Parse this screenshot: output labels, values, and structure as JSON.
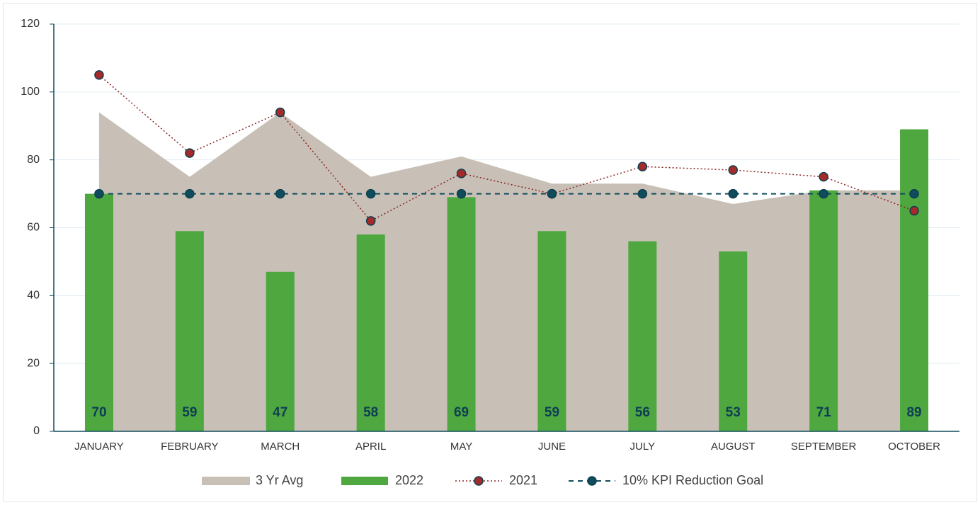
{
  "chart_data": {
    "type": "combo",
    "categories": [
      "JANUARY",
      "FEBRUARY",
      "MARCH",
      "APRIL",
      "MAY",
      "JUNE",
      "JULY",
      "AUGUST",
      "SEPTEMBER",
      "OCTOBER"
    ],
    "series": [
      {
        "name": "3 Yr Avg",
        "type": "area",
        "color": "#c8c0b6",
        "values": [
          94,
          75,
          94,
          75,
          81,
          73,
          73,
          67,
          71,
          71
        ]
      },
      {
        "name": "2022",
        "type": "bar",
        "color": "#4ea83f",
        "values": [
          70,
          59,
          47,
          58,
          69,
          59,
          56,
          53,
          71,
          89
        ]
      },
      {
        "name": "2021",
        "type": "line",
        "color": "#8b2323",
        "marker_color": "#a52a2a",
        "dash": "dotted",
        "values": [
          105,
          82,
          94,
          62,
          76,
          70,
          78,
          77,
          75,
          65
        ]
      },
      {
        "name": "10% KPI Reduction Goal",
        "type": "line",
        "color": "#0f4c5c",
        "marker_color": "#0f4c5c",
        "dash": "dashed",
        "values": [
          70,
          70,
          70,
          70,
          70,
          70,
          70,
          70,
          70,
          70
        ]
      }
    ],
    "ylim": [
      0,
      120
    ],
    "yticks": [
      0,
      20,
      40,
      60,
      80,
      100,
      120
    ],
    "grid": true,
    "legend": "bottom"
  }
}
